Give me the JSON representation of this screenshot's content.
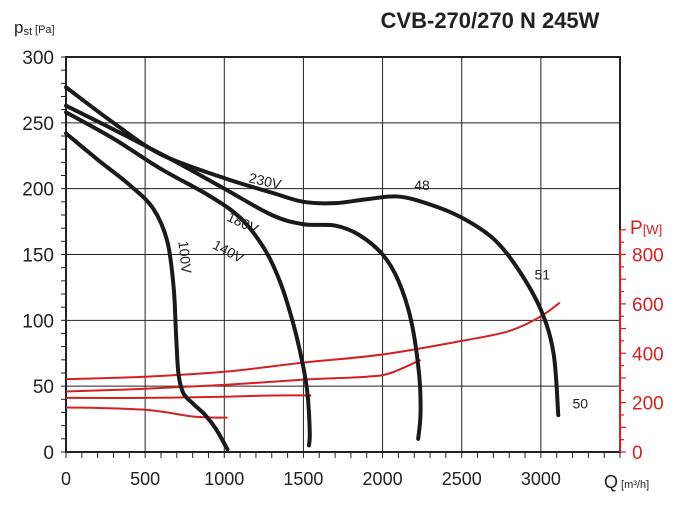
{
  "chart_data": {
    "type": "line",
    "title": "CVB-270/270 N 245W",
    "xlabel": "Q",
    "xlabel_unit": "[m³/h]",
    "ylabel": "p",
    "ylabel_sub": "st",
    "ylabel_unit": "[Pa]",
    "y2label": "P",
    "y2label_unit": "[W]",
    "xlim": [
      0,
      3500
    ],
    "ylim": [
      0,
      300
    ],
    "y2lim": [
      0,
      1600
    ],
    "xticks": [
      0,
      500,
      1000,
      1500,
      2000,
      2500,
      3000
    ],
    "yticks": [
      0,
      50,
      100,
      150,
      200,
      250,
      300
    ],
    "y2ticks": [
      0,
      200,
      400,
      600,
      800
    ],
    "grid": true,
    "colors": {
      "pressure": "#1a1a1a",
      "power": "#d42020",
      "axis2": "#d42020"
    },
    "pressure_series": [
      {
        "name": "230V",
        "points": [
          [
            0,
            277
          ],
          [
            300,
            250
          ],
          [
            600,
            226
          ],
          [
            1000,
            208
          ],
          [
            1300,
            197
          ],
          [
            1500,
            190
          ],
          [
            1700,
            189
          ],
          [
            1900,
            192
          ],
          [
            2100,
            194
          ],
          [
            2300,
            188
          ],
          [
            2500,
            178
          ],
          [
            2700,
            162
          ],
          [
            2850,
            140
          ],
          [
            3000,
            108
          ],
          [
            3080,
            75
          ],
          [
            3110,
            28
          ]
        ]
      },
      {
        "name": "180V",
        "points": [
          [
            0,
            263
          ],
          [
            300,
            245
          ],
          [
            700,
            220
          ],
          [
            1000,
            200
          ],
          [
            1300,
            180
          ],
          [
            1500,
            173
          ],
          [
            1700,
            172
          ],
          [
            1850,
            165
          ],
          [
            2000,
            150
          ],
          [
            2100,
            130
          ],
          [
            2180,
            100
          ],
          [
            2230,
            60
          ],
          [
            2240,
            30
          ],
          [
            2225,
            10
          ]
        ]
      },
      {
        "name": "140V",
        "points": [
          [
            0,
            258
          ],
          [
            300,
            238
          ],
          [
            600,
            215
          ],
          [
            900,
            195
          ],
          [
            1100,
            178
          ],
          [
            1250,
            155
          ],
          [
            1350,
            130
          ],
          [
            1430,
            100
          ],
          [
            1490,
            70
          ],
          [
            1525,
            45
          ],
          [
            1540,
            15
          ],
          [
            1535,
            5
          ]
        ]
      },
      {
        "name": "100V",
        "points": [
          [
            0,
            242
          ],
          [
            200,
            222
          ],
          [
            400,
            203
          ],
          [
            550,
            185
          ],
          [
            640,
            160
          ],
          [
            680,
            125
          ],
          [
            695,
            90
          ],
          [
            710,
            60
          ],
          [
            740,
            45
          ],
          [
            800,
            37
          ],
          [
            880,
            28
          ],
          [
            950,
            17
          ],
          [
            1020,
            2
          ]
        ]
      }
    ],
    "power_series": [
      {
        "name": "230V",
        "points": [
          [
            0,
            295
          ],
          [
            500,
            305
          ],
          [
            1000,
            325
          ],
          [
            1500,
            362
          ],
          [
            2000,
            395
          ],
          [
            2500,
            450
          ],
          [
            2800,
            490
          ],
          [
            3000,
            550
          ],
          [
            3120,
            605
          ]
        ]
      },
      {
        "name": "180V",
        "points": [
          [
            0,
            245
          ],
          [
            500,
            256
          ],
          [
            1000,
            272
          ],
          [
            1500,
            293
          ],
          [
            1900,
            305
          ],
          [
            2050,
            320
          ],
          [
            2240,
            373
          ]
        ]
      },
      {
        "name": "140V",
        "points": [
          [
            0,
            219
          ],
          [
            500,
            219
          ],
          [
            1000,
            224
          ],
          [
            1300,
            229
          ],
          [
            1550,
            229
          ]
        ]
      },
      {
        "name": "100V",
        "points": [
          [
            0,
            181
          ],
          [
            500,
            171
          ],
          [
            800,
            144
          ],
          [
            1020,
            139
          ]
        ]
      }
    ],
    "annotations": [
      {
        "text": "230V",
        "q": 1150,
        "p": 205,
        "rot": 13
      },
      {
        "text": "180V",
        "q": 1010,
        "p": 176,
        "rot": 25
      },
      {
        "text": "140V",
        "q": 920,
        "p": 155,
        "rot": 28
      },
      {
        "text": "100V",
        "q": 710,
        "p": 160,
        "rot": 84
      },
      {
        "text": "48",
        "q": 2200,
        "p": 199,
        "rot": 0
      },
      {
        "text": "51",
        "q": 2960,
        "p": 131,
        "rot": 0
      },
      {
        "text": "50",
        "q": 3200,
        "p": 33,
        "rot": 0
      }
    ]
  }
}
